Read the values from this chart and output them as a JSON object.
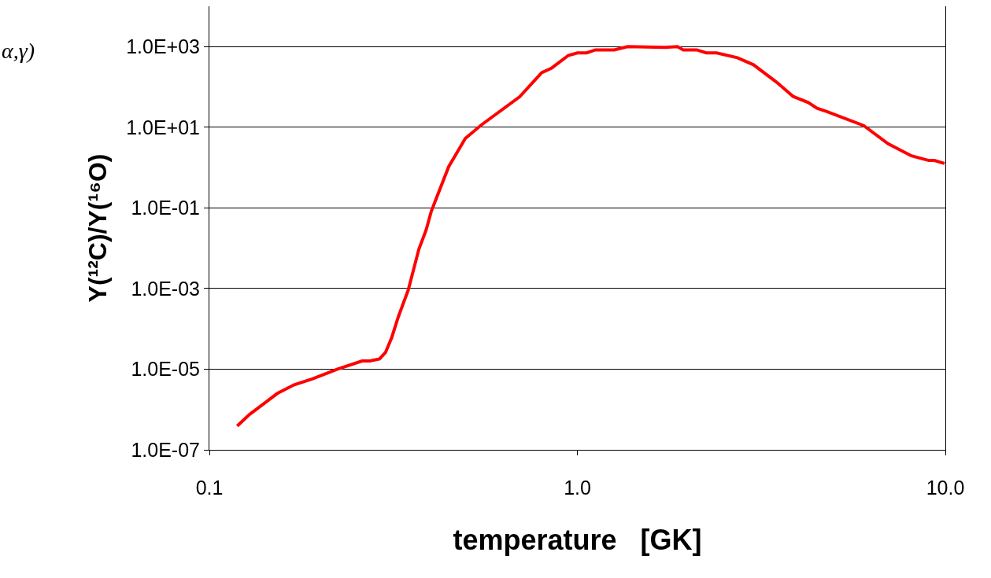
{
  "chart_data": {
    "type": "line",
    "xlabel": "temperature   [GK]",
    "ylabel": "Y(¹²C)/Y(¹⁶O)",
    "log": "xy",
    "grid": "y",
    "legend": false,
    "marker": "none",
    "line_style": "solid",
    "annotations": [
      "α,γ)"
    ],
    "xlim": [
      0.1,
      10
    ],
    "xticks": [
      {
        "value": 0.1,
        "label": "0.1"
      },
      {
        "value": 1,
        "label": "1.0"
      },
      {
        "value": 10,
        "label": "10.0"
      }
    ],
    "ylim": [
      1e-07,
      10000.0
    ],
    "yticks": [
      {
        "value": 1e-07,
        "label": "1.0E-07"
      },
      {
        "value": 1e-05,
        "label": "1.0E-05"
      },
      {
        "value": 0.001,
        "label": "1.0E-03"
      },
      {
        "value": 0.1,
        "label": "1.0E-01"
      },
      {
        "value": 10,
        "label": "1.0E+01"
      },
      {
        "value": 1000,
        "label": "1.0E+03"
      }
    ],
    "series": [
      {
        "color": "#ff0000",
        "x": [
          0.119,
          0.1285,
          0.153,
          0.17,
          0.191,
          0.223,
          0.26,
          0.273,
          0.29,
          0.301,
          0.313,
          0.326,
          0.347,
          0.371,
          0.388,
          0.401,
          0.447,
          0.474,
          0.496,
          0.549,
          0.697,
          0.8,
          0.852,
          0.945,
          1.0,
          1.06,
          1.12,
          1.26,
          1.37,
          1.73,
          1.87,
          1.94,
          2.11,
          2.24,
          2.39,
          2.72,
          3.01,
          3.48,
          3.86,
          4.24,
          4.48,
          4.75,
          6.0,
          6.99,
          8.09,
          9.02,
          9.34,
          9.95
        ],
        "values": [
          3.9e-07,
          7.5e-07,
          2.5e-06,
          4.1e-06,
          5.8e-06,
          1e-05,
          1.6e-05,
          1.6e-05,
          1.8e-05,
          2.6e-05,
          6.1e-05,
          0.000196,
          0.00091,
          0.0095,
          0.028,
          0.083,
          1.05,
          2.6,
          5.3,
          11.5,
          57,
          225,
          295,
          605,
          700,
          700,
          830,
          830,
          1000,
          955,
          1000,
          830,
          830,
          700,
          700,
          530,
          355,
          131,
          58,
          41,
          29.5,
          24.7,
          11,
          3.9,
          1.95,
          1.5,
          1.5,
          1.26
        ]
      }
    ]
  }
}
